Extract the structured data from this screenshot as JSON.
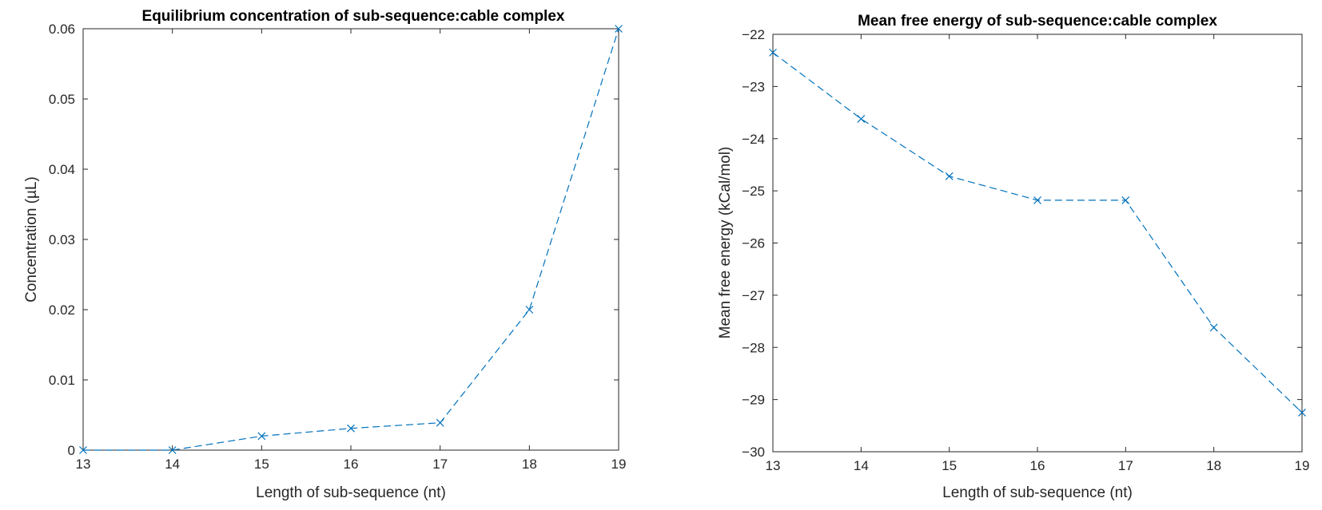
{
  "colors": {
    "series": "#0072BD",
    "axis": "#262626"
  },
  "chart_data": [
    {
      "type": "line",
      "title": "Equilibrium concentration of sub-sequence:cable complex",
      "xlabel": "Length of sub-sequence (nt)",
      "ylabel": "Concentration (µL)",
      "xlim": [
        13,
        19
      ],
      "ylim": [
        0,
        0.06
      ],
      "xticks": [
        13,
        14,
        15,
        16,
        17,
        18,
        19
      ],
      "yticks": [
        0,
        0.01,
        0.02,
        0.03,
        0.04,
        0.05,
        0.06
      ],
      "x": [
        13,
        14,
        15,
        16,
        17,
        18,
        19
      ],
      "y": [
        0,
        0,
        0.002,
        0.0031,
        0.0039,
        0.02,
        0.06
      ],
      "line_style": "dashed",
      "marker": "x",
      "grid": false
    },
    {
      "type": "line",
      "title": "Mean free energy of sub-sequence:cable complex",
      "xlabel": "Length of sub-sequence (nt)",
      "ylabel": "Mean free energy (kCal/mol)",
      "xlim": [
        13,
        19
      ],
      "ylim": [
        -30,
        -22
      ],
      "xticks": [
        13,
        14,
        15,
        16,
        17,
        18,
        19
      ],
      "yticks": [
        -30,
        -29,
        -28,
        -27,
        -26,
        -25,
        -24,
        -23,
        -22
      ],
      "x": [
        13,
        14,
        15,
        16,
        17,
        18,
        19
      ],
      "y": [
        -22.35,
        -23.62,
        -24.72,
        -25.18,
        -25.18,
        -27.62,
        -29.25
      ],
      "line_style": "dashed",
      "marker": "x",
      "grid": false
    }
  ]
}
